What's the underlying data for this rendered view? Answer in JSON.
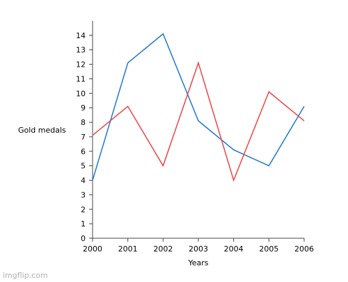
{
  "chart_data": {
    "type": "line",
    "title": "",
    "xlabel": "Years",
    "ylabel": "Gold medals",
    "x": [
      2000,
      2001,
      2002,
      2003,
      2004,
      2005,
      2006
    ],
    "xlim": [
      2000,
      2006
    ],
    "ylim": [
      0,
      15
    ],
    "yticks": [
      0,
      1,
      2,
      3,
      4,
      5,
      6,
      7,
      8,
      9,
      10,
      11,
      12,
      13,
      14
    ],
    "grid": false,
    "legend": "none",
    "series": [
      {
        "color": "#1f77d4",
        "values": [
          4,
          12.1,
          14.1,
          8.1,
          6.1,
          5.0,
          9.1
        ]
      },
      {
        "color": "#ef4444",
        "values": [
          7.1,
          9.1,
          5.0,
          12.1,
          4.0,
          10.1,
          8.1
        ]
      }
    ]
  },
  "watermark": "imgflip.com"
}
